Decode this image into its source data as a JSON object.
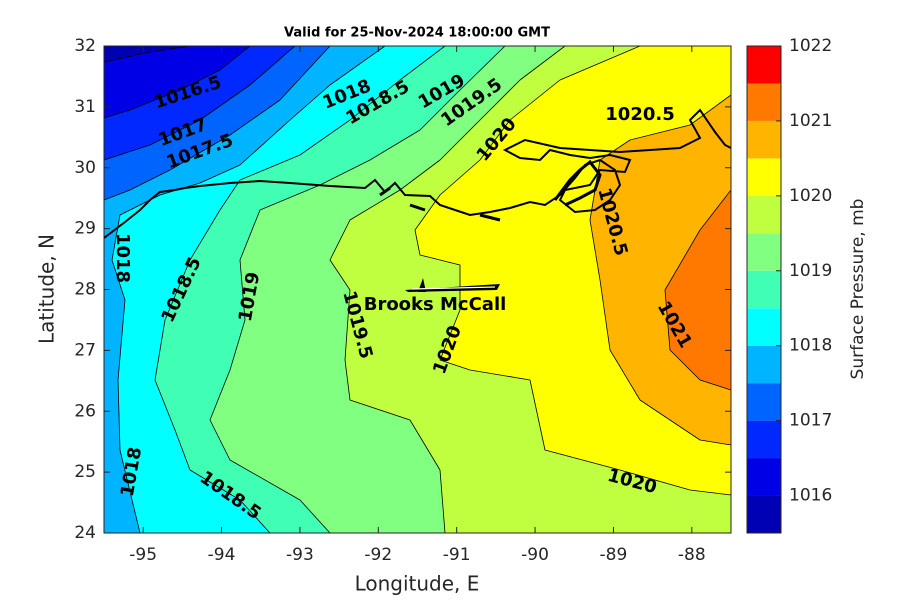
{
  "chart_data": {
    "type": "contour",
    "title": "Valid for 25-Nov-2024 18:00:00 GMT",
    "x_label": "Longitude, E",
    "y_label": "Latitude, N",
    "xlim": [
      -95.5,
      -87.5
    ],
    "ylim": [
      24,
      32
    ],
    "xticks": [
      -95,
      -94,
      -93,
      -92,
      -91,
      -90,
      -89,
      -88
    ],
    "yticks": [
      24,
      25,
      26,
      27,
      28,
      29,
      30,
      31,
      32
    ],
    "levels": [
      1015.5,
      1016,
      1016.5,
      1017,
      1017.5,
      1018,
      1018.5,
      1019,
      1019.5,
      1020,
      1020.5,
      1021,
      1021.5,
      1022
    ],
    "colors": [
      "#0000b4",
      "#0000e6",
      "#0028ff",
      "#0064ff",
      "#00b4ff",
      "#00ffff",
      "#40ffb4",
      "#80ff80",
      "#c0ff40",
      "#ffff00",
      "#ffb400",
      "#ff7800",
      "#ff0000"
    ],
    "clim": [
      1015.5,
      1022
    ],
    "colorbar_ticks": [
      1016,
      1017,
      1018,
      1019,
      1020,
      1021,
      1022
    ],
    "colorbar_label": "Surface Pressure, mb",
    "contour_labels": [
      1016.5,
      1017,
      1017.5,
      1018,
      1018.5,
      1019,
      1019.5,
      1020,
      1020.5,
      1020.5,
      1018,
      1018.5,
      1019,
      1019.5,
      1020,
      1021,
      1018,
      1018.5,
      1020
    ],
    "annotations": [
      "Brooks McCall"
    ]
  }
}
